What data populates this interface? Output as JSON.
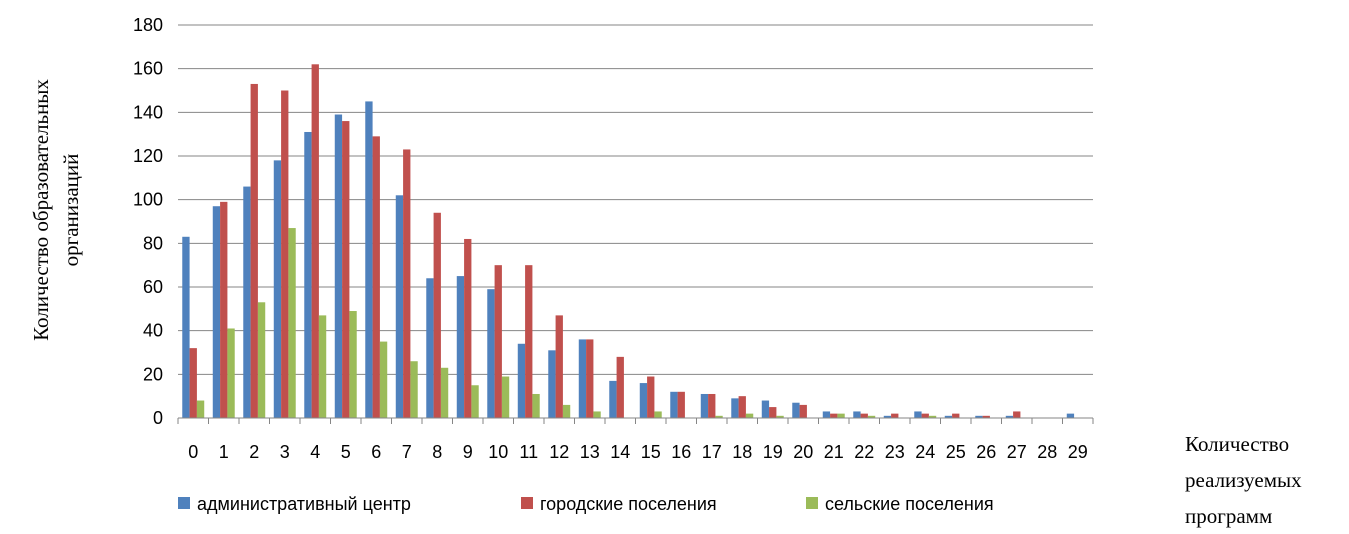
{
  "chart_data": {
    "type": "bar",
    "categories": [
      "0",
      "1",
      "2",
      "3",
      "4",
      "5",
      "6",
      "7",
      "8",
      "9",
      "10",
      "11",
      "12",
      "13",
      "14",
      "15",
      "16",
      "17",
      "18",
      "19",
      "20",
      "21",
      "22",
      "23",
      "24",
      "25",
      "26",
      "27",
      "28",
      "29"
    ],
    "series": [
      {
        "name": "административный центр",
        "color": "#4F81BD",
        "values": [
          83,
          97,
          106,
          118,
          131,
          139,
          145,
          102,
          64,
          65,
          59,
          34,
          31,
          36,
          17,
          16,
          12,
          11,
          9,
          8,
          7,
          3,
          3,
          1,
          3,
          1,
          1,
          1,
          0,
          2
        ]
      },
      {
        "name": "городские поселения",
        "color": "#C0504D",
        "values": [
          32,
          99,
          153,
          150,
          162,
          136,
          129,
          123,
          94,
          82,
          70,
          70,
          47,
          36,
          28,
          19,
          12,
          11,
          10,
          5,
          6,
          2,
          2,
          2,
          2,
          2,
          1,
          3,
          0,
          0
        ]
      },
      {
        "name": "сельские поселения",
        "color": "#9BBB59",
        "values": [
          8,
          41,
          53,
          87,
          47,
          49,
          35,
          26,
          23,
          15,
          19,
          11,
          6,
          3,
          0,
          3,
          0,
          1,
          2,
          1,
          0,
          2,
          1,
          0,
          1,
          0,
          0,
          0,
          0,
          0
        ]
      }
    ],
    "ylim": [
      0,
      180
    ],
    "yticks": [
      "0",
      "20",
      "40",
      "60",
      "80",
      "100",
      "120",
      "140",
      "160",
      "180"
    ],
    "ylabel_line1": "Количество образовательных",
    "ylabel_line2": "организаций",
    "xlabel_lines": [
      "Количество",
      "реализуемых",
      "программ"
    ],
    "grid": true,
    "legend": "bottom"
  }
}
